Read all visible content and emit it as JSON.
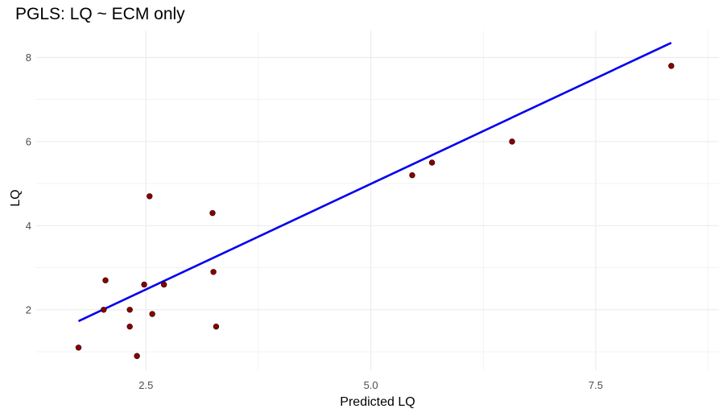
{
  "chart_data": {
    "type": "scatter",
    "title": "PGLS: LQ ~ ECM only",
    "xlabel": "Predicted LQ",
    "ylabel": "LQ",
    "xlim": [
      1.28,
      8.87
    ],
    "ylim": [
      0.56,
      8.64
    ],
    "x_ticks": [
      2.5,
      5.0,
      7.5
    ],
    "x_tick_labels": [
      "2.5",
      "5.0",
      "7.5"
    ],
    "y_ticks": [
      2,
      4,
      6,
      8
    ],
    "y_tick_labels": [
      "2",
      "4",
      "6",
      "8"
    ],
    "grid": true,
    "colors": {
      "points": "#8b0000",
      "point_outline": "#3a0000",
      "fit_line": "#0000ee",
      "grid": "#ebebeb"
    },
    "points": [
      {
        "x": 1.75,
        "y": 1.1
      },
      {
        "x": 2.03,
        "y": 2.0
      },
      {
        "x": 2.05,
        "y": 2.7
      },
      {
        "x": 2.32,
        "y": 2.0
      },
      {
        "x": 2.32,
        "y": 1.6
      },
      {
        "x": 2.4,
        "y": 0.9
      },
      {
        "x": 2.48,
        "y": 2.6
      },
      {
        "x": 2.54,
        "y": 4.7
      },
      {
        "x": 2.57,
        "y": 1.9
      },
      {
        "x": 2.7,
        "y": 2.6
      },
      {
        "x": 3.24,
        "y": 4.3
      },
      {
        "x": 3.25,
        "y": 2.9
      },
      {
        "x": 3.28,
        "y": 1.6
      },
      {
        "x": 5.46,
        "y": 5.2
      },
      {
        "x": 5.68,
        "y": 5.5
      },
      {
        "x": 6.57,
        "y": 6.0
      },
      {
        "x": 8.34,
        "y": 7.8
      }
    ],
    "fit_line": {
      "x": [
        1.75,
        8.34
      ],
      "y": [
        1.73,
        8.35
      ]
    }
  }
}
